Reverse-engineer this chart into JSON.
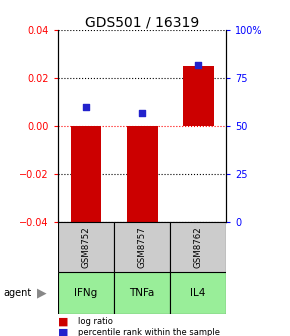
{
  "title": "GDS501 / 16319",
  "categories": [
    "IFNg",
    "TNFa",
    "IL4"
  ],
  "gsm_labels": [
    "GSM8752",
    "GSM8757",
    "GSM8762"
  ],
  "log_ratios": [
    -0.043,
    -0.043,
    0.025
  ],
  "percentile_ranks": [
    60,
    57,
    82
  ],
  "ylim_left": [
    -0.04,
    0.04
  ],
  "ylim_right": [
    0,
    100
  ],
  "bar_color": "#cc0000",
  "dot_color": "#2222cc",
  "bar_width": 0.55,
  "agent_color": "#99ee99",
  "gsm_color": "#cccccc",
  "title_fontsize": 10,
  "tick_fontsize": 7,
  "yticks_left": [
    -0.04,
    -0.02,
    0,
    0.02,
    0.04
  ],
  "yticks_right": [
    0,
    25,
    50,
    75,
    100
  ],
  "ytick_labels_right": [
    "0",
    "25",
    "50",
    "75",
    "100%"
  ]
}
